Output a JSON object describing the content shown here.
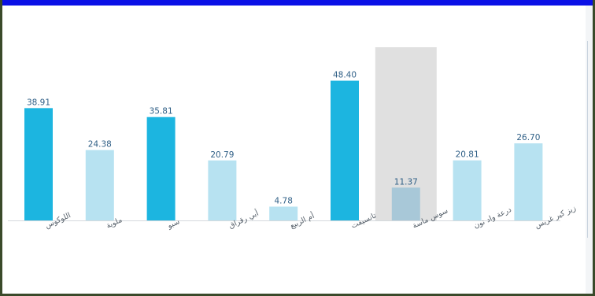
{
  "colors": {
    "frame": "#3a4a2a",
    "topbar": "#0a10e6",
    "bar_dark": "#1cb5e0",
    "bar_light": "#b7e2f1",
    "bar_selected": "#a8c8d8",
    "selection_band": "#e0e0e0"
  },
  "chart_data": {
    "type": "bar",
    "categories": [
      "اللوكوس",
      "ملوية",
      "سبو",
      "أبي رقراق",
      "أم الربيع",
      "تانسيفت",
      "سوس ماسة",
      "درعة واد نون",
      "زيز كير غريس"
    ],
    "values": [
      38.91,
      24.38,
      35.81,
      20.79,
      4.78,
      48.4,
      11.37,
      20.81,
      26.7
    ],
    "value_labels": [
      "38.91",
      "24.38",
      "35.81",
      "20.79",
      "4.78",
      "48.40",
      "11.37",
      "20.81",
      "26.70"
    ],
    "bar_styles": [
      "dark",
      "light",
      "dark",
      "light",
      "light",
      "dark",
      "selected",
      "light",
      "light"
    ],
    "highlighted_index": 6,
    "ylim": [
      0,
      60
    ],
    "title": "",
    "xlabel": "",
    "ylabel": "",
    "grid": false,
    "legend": "none"
  }
}
